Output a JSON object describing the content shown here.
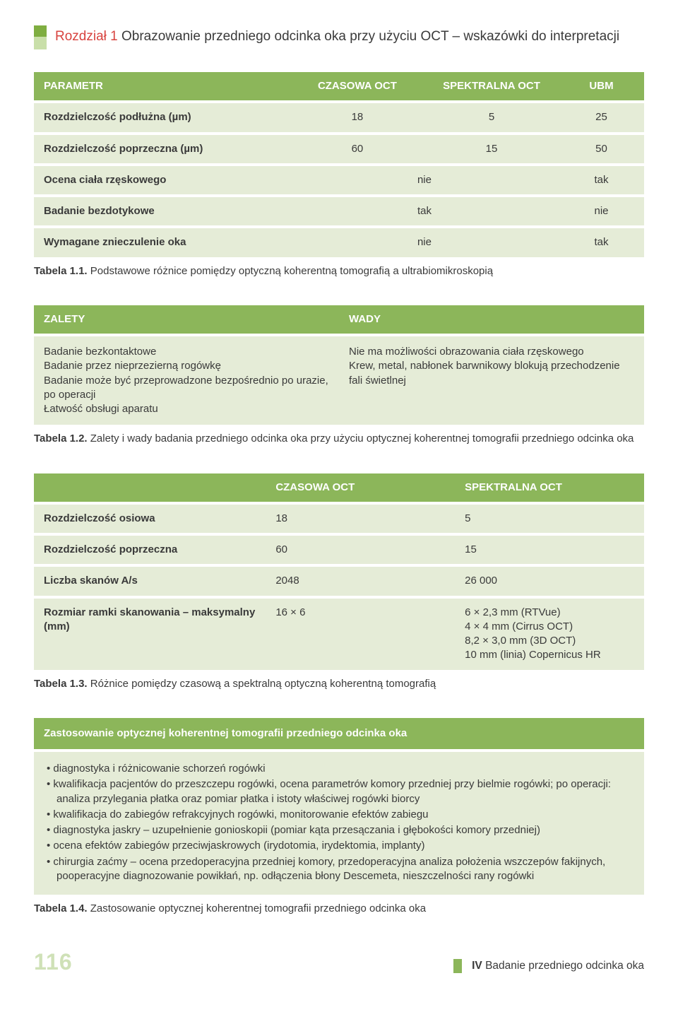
{
  "chapter": {
    "label_red": "Rozdział 1",
    "title_rest": " Obrazowanie przedniego odcinka oka przy użyciu OCT – wskazówki do interpretacji"
  },
  "table1": {
    "headers": {
      "p": "PARAMETR",
      "c1": "CZASOWA OCT",
      "c2": "SPEKTRALNA OCT",
      "c3": "UBM"
    },
    "rows3": [
      {
        "p": "Rozdzielczość podłużna (µm)",
        "c1": "18",
        "c2": "5",
        "c3": "25"
      },
      {
        "p": "Rozdzielczość poprzeczna (µm)",
        "c1": "60",
        "c2": "15",
        "c3": "50"
      }
    ],
    "rows2": [
      {
        "p": "Ocena ciała rzęskowego",
        "l": "nie",
        "r": "tak"
      },
      {
        "p": "Badanie bezdotykowe",
        "l": "tak",
        "r": "nie"
      },
      {
        "p": "Wymagane znieczulenie oka",
        "l": "nie",
        "r": "tak"
      }
    ],
    "caption_b": "Tabela 1.1.",
    "caption_rest": " Podstawowe różnice pomiędzy optyczną koherentną tomografią a ultrabiomikroskopią"
  },
  "table2": {
    "h_left": "ZALETY",
    "h_right": "WADY",
    "left": "Badanie bezkontaktowe\nBadanie przez nieprzezierną rogówkę\nBadanie może być przeprowadzone bezpośrednio po urazie, po operacji\nŁatwość obsługi aparatu",
    "right": "Nie ma możliwości obrazowania ciała rzęskowego\nKrew, metal, nabłonek barwnikowy blokują przechodzenie fali świetlnej",
    "caption_b": "Tabela 1.2.",
    "caption_rest": " Zalety i wady badania przedniego odcinka oka przy użyciu optycznej koherentnej tomografii przedniego odcinka oka"
  },
  "table3": {
    "headers": {
      "blank": "",
      "c1": "CZASOWA OCT",
      "c2": "SPEKTRALNA OCT"
    },
    "rows": [
      {
        "p": "Rozdzielczość osiowa",
        "c1": "18",
        "c2": "5"
      },
      {
        "p": "Rozdzielczość poprzeczna",
        "c1": "60",
        "c2": "15"
      },
      {
        "p": "Liczba skanów A/s",
        "c1": "2048",
        "c2": "26 000"
      },
      {
        "p": "Rozmiar ramki skanowania – maksymalny (mm)",
        "c1": "16 × 6",
        "c2": "6 × 2,3 mm (RTVue)\n4 × 4 mm (Cirrus OCT)\n8,2 × 3,0 mm (3D OCT)\n10 mm (linia) Copernicus HR"
      }
    ],
    "caption_b": "Tabela 1.3.",
    "caption_rest": " Różnice pomiędzy czasową a spektralną optyczną koherentną tomografią"
  },
  "table4": {
    "header": "Zastosowanie optycznej koherentnej tomografii przedniego odcinka oka",
    "items": [
      "diagnostyka i różnicowanie schorzeń rogówki",
      "kwalifikacja pacjentów do przeszczepu rogówki, ocena parametrów komory przedniej przy bielmie rogówki; po operacji: analiza przylegania płatka oraz pomiar płatka i istoty właściwej rogówki biorcy",
      "kwalifikacja do zabiegów refrakcyjnych rogówki, monitorowanie efektów zabiegu",
      "diagnostyka jaskry – uzupełnienie gonioskopii (pomiar kąta przesączania i głębokości komory przedniej)",
      "ocena efektów zabiegów przeciwjaskrowych (irydotomia, irydektomia, implanty)",
      "chirurgia zaćmy – ocena przedoperacyjna przedniej komory, przedoperacyjna analiza położenia wszczepów fakijnych, pooperacyjne diagnozowanie powikłań, np. odłączenia błony Descemeta, nieszczelności rany rogówki"
    ],
    "caption_b": "Tabela 1.4.",
    "caption_rest": " Zastosowanie optycznej koherentnej tomografii przedniego odcinka oka"
  },
  "footer": {
    "page": "116",
    "section_b": "IV",
    "section_rest": "  Badanie przedniego odcinka oka"
  },
  "colors": {
    "header_bg": "#8cb65a",
    "row_bg": "#e5ecd7",
    "tab_top": "#7fae41",
    "tab_bot": "#c9dfa9",
    "page_num": "#cfe1b7",
    "red": "#d8433f"
  }
}
